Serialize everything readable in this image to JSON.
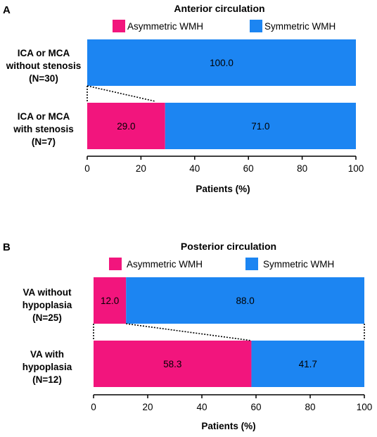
{
  "chart_data": [
    {
      "type": "bar",
      "orientation": "horizontal",
      "stacked": true,
      "panel": "A",
      "title": "Anterior circulation",
      "categories": [
        [
          "ICA or MCA",
          "without stenosis",
          "(N=30)"
        ],
        [
          "ICA or MCA",
          "with stenosis",
          "(N=7)"
        ]
      ],
      "series": [
        {
          "name": "Asymmetric WMH",
          "values": [
            0,
            29.0
          ],
          "labels": [
            "",
            "29.0"
          ],
          "color": "#f2157d"
        },
        {
          "name": "Symmetric WMH",
          "values": [
            100.0,
            71.0
          ],
          "labels": [
            "100.0",
            "71.0"
          ],
          "color": "#1c85f2"
        }
      ],
      "xlabel": "Patients (%)",
      "ylabel": "",
      "xlim": [
        0,
        100
      ],
      "xticks": [
        "0",
        "20",
        "40",
        "60",
        "80",
        "100"
      ],
      "legend": "top",
      "grid": false
    },
    {
      "type": "bar",
      "orientation": "horizontal",
      "stacked": true,
      "panel": "B",
      "title": "Posterior circulation",
      "categories": [
        [
          "VA without",
          "hypoplasia",
          "(N=25)"
        ],
        [
          "VA with",
          "hypoplasia",
          "(N=12)"
        ]
      ],
      "series": [
        {
          "name": "Asymmetric WMH",
          "values": [
            12.0,
            58.3
          ],
          "labels": [
            "12.0",
            "58.3"
          ],
          "color": "#f2157d"
        },
        {
          "name": "Symmetric WMH",
          "values": [
            88.0,
            41.7
          ],
          "labels": [
            "88.0",
            "41.7"
          ],
          "color": "#1c85f2"
        }
      ],
      "xlabel": "Patients (%)",
      "ylabel": "",
      "xlim": [
        0,
        100
      ],
      "xticks": [
        "0",
        "20",
        "40",
        "60",
        "80",
        "100"
      ],
      "legend": "top",
      "grid": false
    }
  ]
}
